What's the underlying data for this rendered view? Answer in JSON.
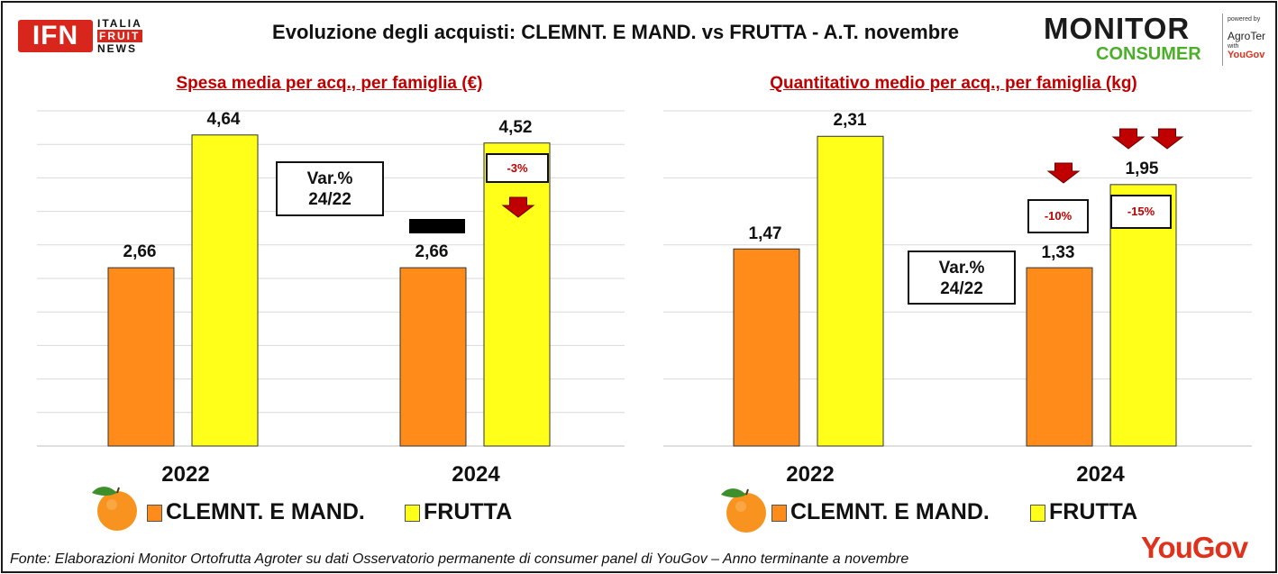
{
  "header": {
    "title": "Evoluzione degli acquisti: CLEMNT. E MAND. vs FRUTTA  - A.T. novembre",
    "ifn_logo": {
      "main": "IFN",
      "line1": "ITALIA",
      "line2": "FRUIT",
      "line3": "NEWS"
    },
    "monitor_logo": {
      "main": "MONITOR",
      "sub": "CONSUMER",
      "powered": "powered by",
      "agroter": "AgroTer",
      "with": "with",
      "yougov": "YouGov"
    }
  },
  "colors": {
    "clementine": "#ff8c1a",
    "frutta": "#ffff1a",
    "accent": "#c00000",
    "arrow": "#c00000",
    "gridline": "#d9d9d9"
  },
  "chart_data": [
    {
      "type": "bar",
      "title": "Spesa media per acq., per famiglia (€)",
      "categories": [
        "2022",
        "2024"
      ],
      "series": [
        {
          "name": "CLEMNT. E MAND.",
          "values": [
            2.66,
            2.66
          ],
          "labels": [
            "2,66",
            "2,66"
          ]
        },
        {
          "name": "FRUTTA",
          "values": [
            4.64,
            4.52
          ],
          "labels": [
            "4,64",
            "4,52"
          ]
        }
      ],
      "ylim": [
        0,
        5
      ],
      "grid": true,
      "legend": "bottom",
      "variation_box": "Var.%\n24/22",
      "variations": [
        {
          "series": "CLEMNT. E MAND.",
          "text": "",
          "direction": "flat"
        },
        {
          "series": "FRUTTA",
          "text": "-3%",
          "direction": "down"
        }
      ]
    },
    {
      "type": "bar",
      "title": "Quantitativo medio per acq., per famiglia (kg)",
      "categories": [
        "2022",
        "2024"
      ],
      "series": [
        {
          "name": "CLEMNT. E MAND.",
          "values": [
            1.47,
            1.33
          ],
          "labels": [
            "1,47",
            "1,33"
          ]
        },
        {
          "name": "FRUTTA",
          "values": [
            2.31,
            1.95
          ],
          "labels": [
            "2,31",
            "1,95"
          ]
        }
      ],
      "ylim": [
        0,
        2.5
      ],
      "grid": true,
      "legend": "bottom",
      "variation_box": "Var.%\n24/22",
      "variations": [
        {
          "series": "CLEMNT. E MAND.",
          "text": "-10%",
          "direction": "down"
        },
        {
          "series": "FRUTTA",
          "text": "-15%",
          "direction": "down-strong"
        }
      ]
    }
  ],
  "legend": {
    "item1": "CLEMNT. E MAND.",
    "item2": "FRUTTA",
    "icon": "orange-fruit-icon"
  },
  "footer": {
    "source": "Fonte: Elaborazioni Monitor Ortofrutta Agroter su dati Osservatorio permanente di consumer panel di YouGov  – Anno terminante a novembre",
    "yougov": "YouGov"
  }
}
